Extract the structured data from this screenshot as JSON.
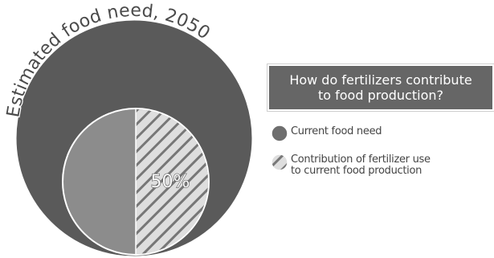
{
  "diagram": {
    "outer_label": "Estimated food need, 2050",
    "inner_label": "50%",
    "question": {
      "line1": "How do fertilizers contribute",
      "line2": "to food production?"
    },
    "legend": [
      {
        "label_line1": "Current food need",
        "label_line2": ""
      },
      {
        "label_line1": "Contribution of fertilizer use",
        "label_line2": "to current food production"
      }
    ],
    "colors": {
      "outer": "#5a5a5a",
      "current": "#8c8c8c",
      "hatch_bg": "#dedede",
      "hatch_line": "#777777",
      "title_bg": "#666666"
    }
  }
}
